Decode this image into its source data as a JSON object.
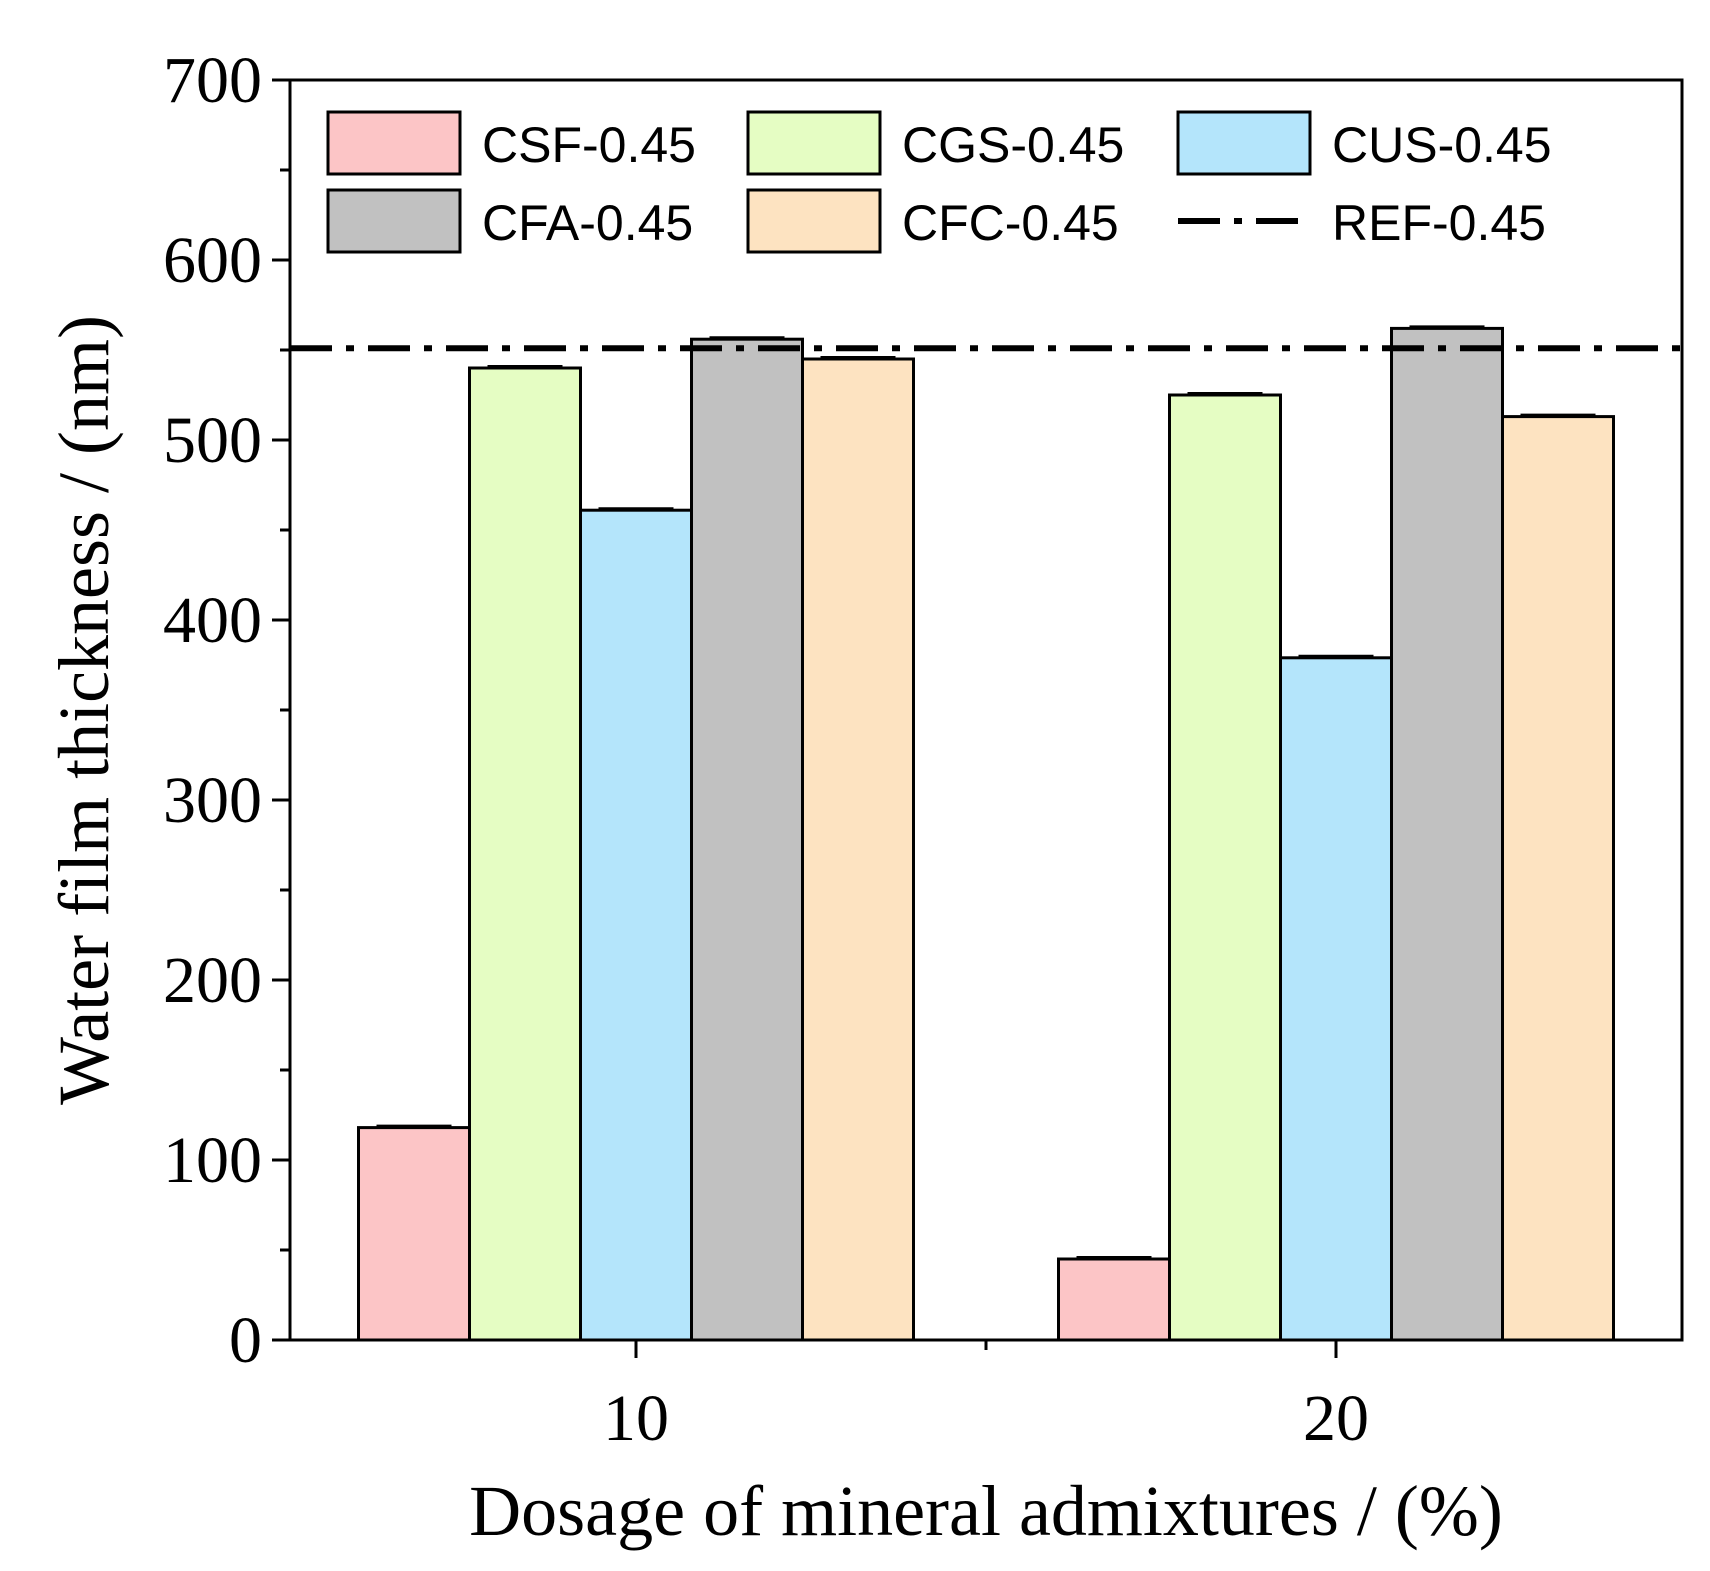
{
  "chart_data": {
    "type": "bar",
    "title": "",
    "xlabel": "Dosage of mineral admixtures / (%)",
    "ylabel": "Water film thickness / (nm)",
    "categories": [
      "10",
      "20"
    ],
    "ylim": [
      0,
      700
    ],
    "yticks": [
      "0",
      "100",
      "200",
      "300",
      "400",
      "500",
      "600",
      "700"
    ],
    "series": [
      {
        "name": "CSF-0.45",
        "values": [
          118,
          45
        ],
        "color": "#fcc5c6"
      },
      {
        "name": "CGS-0.45",
        "values": [
          540,
          525
        ],
        "color": "#e5fdc3"
      },
      {
        "name": "CUS-0.45",
        "values": [
          461,
          379
        ],
        "color": "#b4e5fb"
      },
      {
        "name": "CFA-0.45",
        "values": [
          556,
          562
        ],
        "color": "#c1c1c1"
      },
      {
        "name": "CFC-0.45",
        "values": [
          545,
          513
        ],
        "color": "#fde3c1"
      }
    ],
    "reference_line": {
      "name": "REF-0.45",
      "value": 551,
      "style": "dash-dot"
    },
    "legend_position": "top",
    "grid": false
  }
}
